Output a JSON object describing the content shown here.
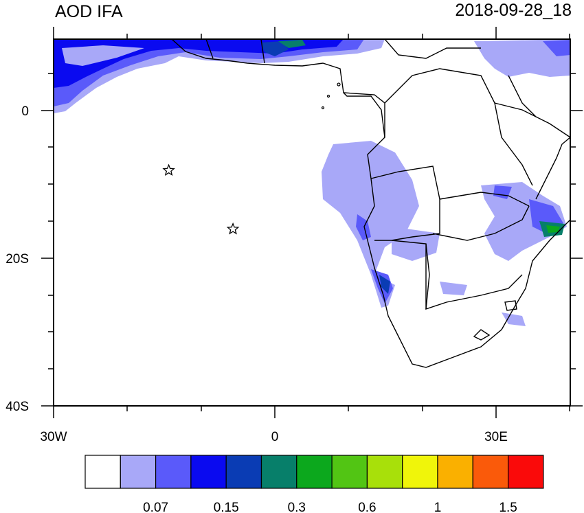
{
  "header": {
    "title": "AOD IFA",
    "datetime": "2018-09-28_18"
  },
  "axes": {
    "y_tick_labels": [
      "0",
      "20S",
      "40S"
    ],
    "x_tick_labels": [
      "30W",
      "0",
      "30E"
    ]
  },
  "colorbar": {
    "colors": [
      "#ffffff",
      "#a8a8f8",
      "#5a5afa",
      "#0a0af0",
      "#0a3cb4",
      "#077f6a",
      "#0ca81d",
      "#52c514",
      "#a8e00a",
      "#f0f50a",
      "#fab000",
      "#fa5a0a",
      "#fa0a0a"
    ],
    "labels": [
      "0.07",
      "0.15",
      "0.3",
      "0.6",
      "1",
      "1.5"
    ]
  },
  "markers": {
    "stars": [
      {
        "lon": -14.4,
        "lat": -7.9
      },
      {
        "lon": -5.7,
        "lat": -15.9
      }
    ]
  }
}
